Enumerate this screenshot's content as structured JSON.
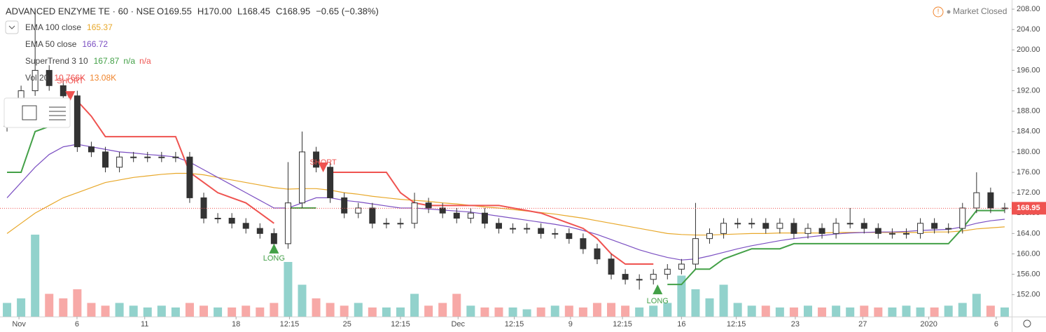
{
  "chart_data": {
    "type": "candlestick",
    "title": "ADVANCED ENZYME TE · 60 · NSE",
    "ohlc_text": [
      "O169.55",
      "H170.00",
      "L168.45",
      "C168.95",
      "−0.65 (−0.38%)"
    ],
    "status": "Market Closed",
    "indicators": [
      {
        "name": "EMA 100 close",
        "readings": [
          "165.37"
        ],
        "colors": [
          "#e8a82a"
        ]
      },
      {
        "name": "EMA 50 close",
        "readings": [
          "166.72"
        ],
        "colors": [
          "#7b4fc2"
        ]
      },
      {
        "name": "SuperTrend 3 10",
        "readings": [
          "167.87",
          "n/a",
          "n/a"
        ],
        "colors": [
          "#43a047",
          "#43a047",
          "#ef5350"
        ]
      },
      {
        "name": "Vol 20",
        "readings": [
          "10.766K",
          "13.08K"
        ],
        "colors": [
          "#ef5350",
          "#f0852d"
        ]
      }
    ],
    "signals": [
      "SHORT",
      "LONG",
      "SHORT",
      "LONG"
    ],
    "last_price": 168.95,
    "xlim": [
      0,
      72
    ],
    "xticks": [
      {
        "value": 1.35,
        "label": "Nov"
      },
      {
        "value": 5.48,
        "label": "6"
      },
      {
        "value": 10.3,
        "label": "11"
      },
      {
        "value": 16.8,
        "label": "18"
      },
      {
        "value": 20.6,
        "label": "12:15"
      },
      {
        "value": 24.7,
        "label": "25"
      },
      {
        "value": 28.5,
        "label": "12:15"
      },
      {
        "value": 32.6,
        "label": "Dec"
      },
      {
        "value": 36.6,
        "label": "12:15"
      },
      {
        "value": 40.6,
        "label": "9"
      },
      {
        "value": 44.3,
        "label": "12:15"
      },
      {
        "value": 48.5,
        "label": "16"
      },
      {
        "value": 52.4,
        "label": "12:15"
      },
      {
        "value": 56.6,
        "label": "23"
      },
      {
        "value": 61.4,
        "label": "27"
      },
      {
        "value": 66.1,
        "label": "2020"
      },
      {
        "value": 70.9,
        "label": "6"
      }
    ],
    "ylim": [
      147.7,
      209.8
    ],
    "yticks": [
      {
        "value": 152,
        "label": "152.00"
      },
      {
        "value": 156,
        "label": "156.00"
      },
      {
        "value": 160,
        "label": "160.00"
      },
      {
        "value": 164,
        "label": "164.00"
      },
      {
        "value": 168,
        "label": "168.00"
      },
      {
        "value": 172,
        "label": "172.00"
      },
      {
        "value": 176,
        "label": "176.00"
      },
      {
        "value": 180,
        "label": "180.00"
      },
      {
        "value": 184,
        "label": "184.00"
      },
      {
        "value": 188,
        "label": "188.00"
      },
      {
        "value": 192,
        "label": "192.00"
      },
      {
        "value": 196,
        "label": "196.00"
      },
      {
        "value": 200,
        "label": "200.00"
      },
      {
        "value": 204,
        "label": "204.00"
      },
      {
        "value": 208,
        "label": "208.00"
      }
    ],
    "open": [
      185,
      187,
      192,
      196,
      193,
      191,
      181,
      180,
      177,
      179,
      179,
      179,
      179,
      179,
      171,
      167,
      167,
      166,
      165,
      164,
      162,
      170,
      180,
      177,
      171,
      168,
      169,
      166,
      166,
      166,
      170,
      169,
      168,
      167,
      168,
      166,
      165,
      165,
      165,
      164,
      164,
      163,
      161,
      159,
      156,
      155,
      155,
      156,
      157,
      158,
      163,
      164,
      166,
      166,
      166,
      165,
      166,
      164,
      165,
      164,
      166,
      166,
      165,
      164,
      164,
      164,
      166,
      165,
      165,
      169,
      172,
      169
    ],
    "high": [
      188,
      193,
      208,
      197,
      194,
      192,
      182,
      181,
      180,
      180,
      180,
      180,
      180,
      180,
      172,
      168,
      168,
      167,
      166,
      165,
      178,
      184,
      181,
      178,
      172,
      170,
      170,
      167,
      167,
      172,
      171,
      170,
      169,
      169,
      169,
      167,
      166,
      166,
      166,
      165,
      165,
      164,
      162,
      160,
      157,
      156,
      157,
      158,
      159,
      170,
      165,
      167,
      167,
      167,
      167,
      167,
      167,
      166,
      166,
      167,
      169,
      167,
      166,
      165,
      165,
      167,
      167,
      166,
      170,
      176,
      173,
      170
    ],
    "low": [
      184,
      186,
      191,
      192,
      190,
      180,
      179,
      176,
      176,
      178,
      178,
      178,
      178,
      170,
      166,
      166,
      165,
      164,
      163,
      161,
      161,
      169,
      176,
      170,
      167,
      167,
      165,
      165,
      165,
      165,
      168,
      167,
      166,
      166,
      165,
      164,
      164,
      164,
      163,
      163,
      162,
      160,
      158,
      155,
      154,
      153,
      154,
      155,
      156,
      157,
      162,
      163,
      165,
      165,
      164,
      164,
      163,
      163,
      163,
      163,
      165,
      164,
      163,
      163,
      163,
      163,
      164,
      164,
      164,
      168,
      168,
      168
    ],
    "close": [
      187,
      192,
      196,
      193,
      191,
      181,
      180,
      177,
      179,
      179,
      179,
      179,
      179,
      171,
      167,
      167,
      166,
      165,
      164,
      162,
      170,
      180,
      177,
      171,
      168,
      169,
      166,
      166,
      166,
      170,
      169,
      168,
      167,
      168,
      166,
      165,
      165,
      165,
      164,
      164,
      163,
      161,
      159,
      156,
      155,
      155,
      156,
      157,
      158,
      163,
      164,
      166,
      166,
      166,
      165,
      166,
      164,
      165,
      164,
      166,
      166,
      165,
      164,
      164,
      164,
      166,
      165,
      165,
      169,
      172,
      169,
      169
    ],
    "volume": {
      "ylim": [
        0,
        100
      ],
      "values": [
        15,
        20,
        90,
        25,
        20,
        30,
        15,
        12,
        15,
        12,
        10,
        12,
        10,
        15,
        12,
        10,
        10,
        12,
        10,
        15,
        60,
        35,
        20,
        15,
        12,
        15,
        10,
        10,
        10,
        25,
        12,
        15,
        25,
        12,
        10,
        10,
        10,
        8,
        10,
        12,
        12,
        10,
        15,
        15,
        12,
        10,
        12,
        15,
        45,
        30,
        20,
        35,
        15,
        12,
        12,
        10,
        10,
        12,
        10,
        12,
        10,
        12,
        10,
        10,
        12,
        10,
        10,
        12,
        15,
        25,
        12,
        10
      ]
    },
    "series": [
      {
        "name": "EMA 100 close",
        "color": "#e8a82a",
        "values": [
          164,
          166,
          168,
          169.5,
          171,
          172,
          173,
          174,
          174.5,
          175,
          175.3,
          175.6,
          175.8,
          175.8,
          175.5,
          175,
          174.5,
          174,
          173.5,
          173,
          172.7,
          172.8,
          172.8,
          172.5,
          172,
          171.7,
          171.3,
          171,
          170.7,
          170.5,
          170.3,
          170,
          169.8,
          169.5,
          169.2,
          169,
          168.7,
          168.4,
          168.1,
          167.8,
          167.4,
          167,
          166.5,
          166,
          165.5,
          165,
          164.5,
          164,
          163.8,
          163.7,
          163.7,
          163.8,
          163.9,
          164,
          164,
          164.1,
          164.1,
          164.1,
          164.1,
          164.2,
          164.2,
          164.2,
          164.2,
          164.2,
          164.2,
          164.2,
          164.3,
          164.3,
          164.5,
          164.9,
          165.1,
          165.3
        ]
      },
      {
        "name": "EMA 50 close",
        "color": "#7b4fc2",
        "values": [
          171,
          174,
          177,
          179.5,
          181,
          181.5,
          181,
          180.5,
          180,
          179.8,
          179.5,
          179.3,
          179,
          178,
          176.5,
          175,
          173.5,
          172,
          170.5,
          169,
          169,
          170,
          171,
          171,
          170.5,
          170.2,
          169.8,
          169.4,
          169,
          169,
          168.8,
          168.6,
          168.4,
          168.2,
          167.8,
          167.4,
          167,
          166.6,
          166.2,
          165.8,
          165.3,
          164.6,
          163.8,
          162.8,
          161.8,
          160.8,
          160,
          159.3,
          158.8,
          159,
          159.6,
          160.3,
          161,
          161.6,
          162.1,
          162.6,
          163,
          163.3,
          163.6,
          163.9,
          164.1,
          164.2,
          164.3,
          164.3,
          164.4,
          164.6,
          164.7,
          164.8,
          165.3,
          166,
          166.5,
          166.8
        ]
      },
      {
        "name": "SuperTrend up",
        "color": "#43a047",
        "values": [
          176,
          176,
          184,
          185,
          185,
          null,
          null,
          null,
          null,
          null,
          null,
          null,
          null,
          null,
          null,
          null,
          null,
          null,
          null,
          null,
          169,
          169,
          169,
          null,
          null,
          null,
          null,
          null,
          null,
          null,
          null,
          null,
          null,
          null,
          null,
          null,
          null,
          null,
          null,
          null,
          null,
          null,
          null,
          null,
          null,
          null,
          null,
          154,
          154,
          157,
          157,
          159,
          160,
          161,
          161,
          161,
          162,
          162,
          162,
          162,
          162,
          162,
          162,
          162,
          162,
          162,
          162,
          162,
          165,
          168.5,
          168.5,
          168.5
        ]
      },
      {
        "name": "SuperTrend down",
        "color": "#ef5350",
        "values": [
          null,
          null,
          null,
          null,
          null,
          190,
          187,
          183,
          183,
          183,
          183,
          183,
          183,
          176,
          174,
          172,
          171,
          170,
          168,
          166,
          null,
          null,
          null,
          176,
          176,
          176,
          176,
          176,
          172,
          170,
          169.5,
          169.5,
          169.5,
          169.5,
          169.5,
          169.5,
          169,
          168.5,
          168,
          167,
          166,
          165,
          163,
          160,
          158,
          158,
          158,
          null,
          null,
          null,
          null,
          null,
          null,
          null,
          null,
          null,
          null,
          null,
          null,
          null,
          null,
          null,
          null,
          null,
          null,
          null,
          null,
          null,
          null,
          null,
          null,
          null
        ]
      }
    ]
  }
}
